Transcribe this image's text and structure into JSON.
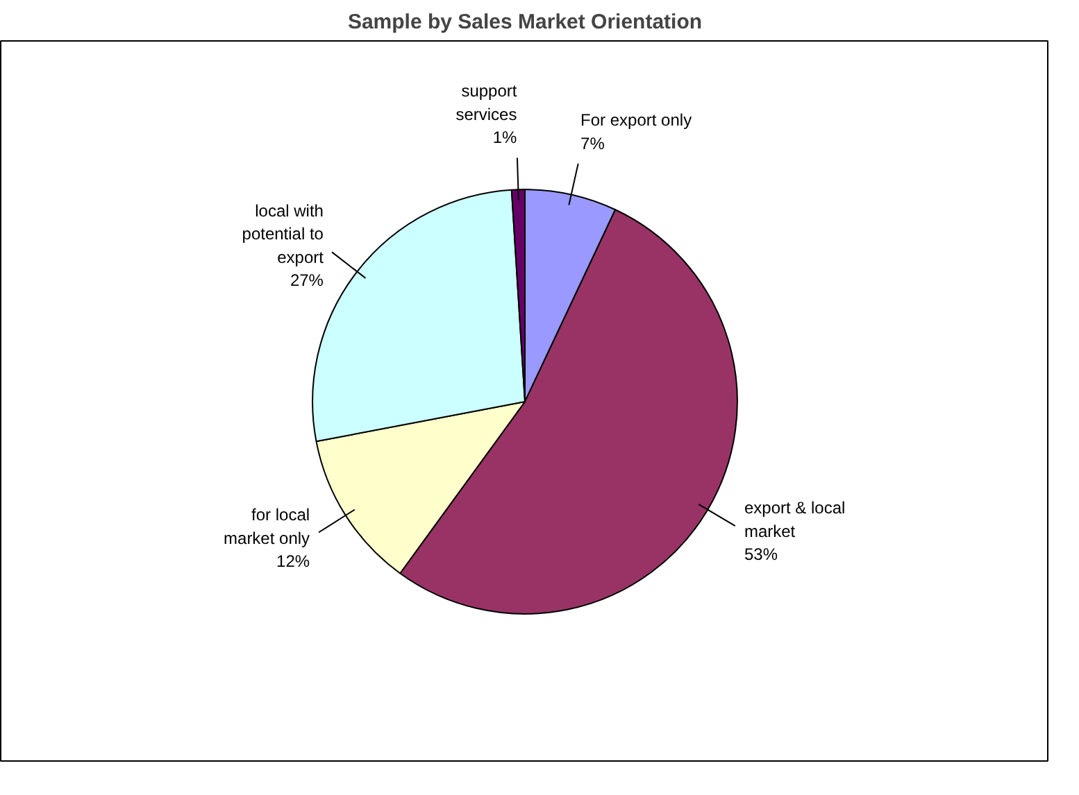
{
  "chart_data": {
    "type": "pie",
    "title": "Sample by Sales Market Orientation",
    "categories": [
      "For export only",
      "export & local market",
      "for local market only",
      "local with potential to export",
      "support services"
    ],
    "values": [
      7,
      53,
      12,
      27,
      1
    ],
    "value_labels": [
      "7%",
      "53%",
      "12%",
      "27%",
      "1%"
    ],
    "colors": [
      "#9999ff",
      "#993366",
      "#ffffcc",
      "#ccffff",
      "#660066"
    ]
  }
}
